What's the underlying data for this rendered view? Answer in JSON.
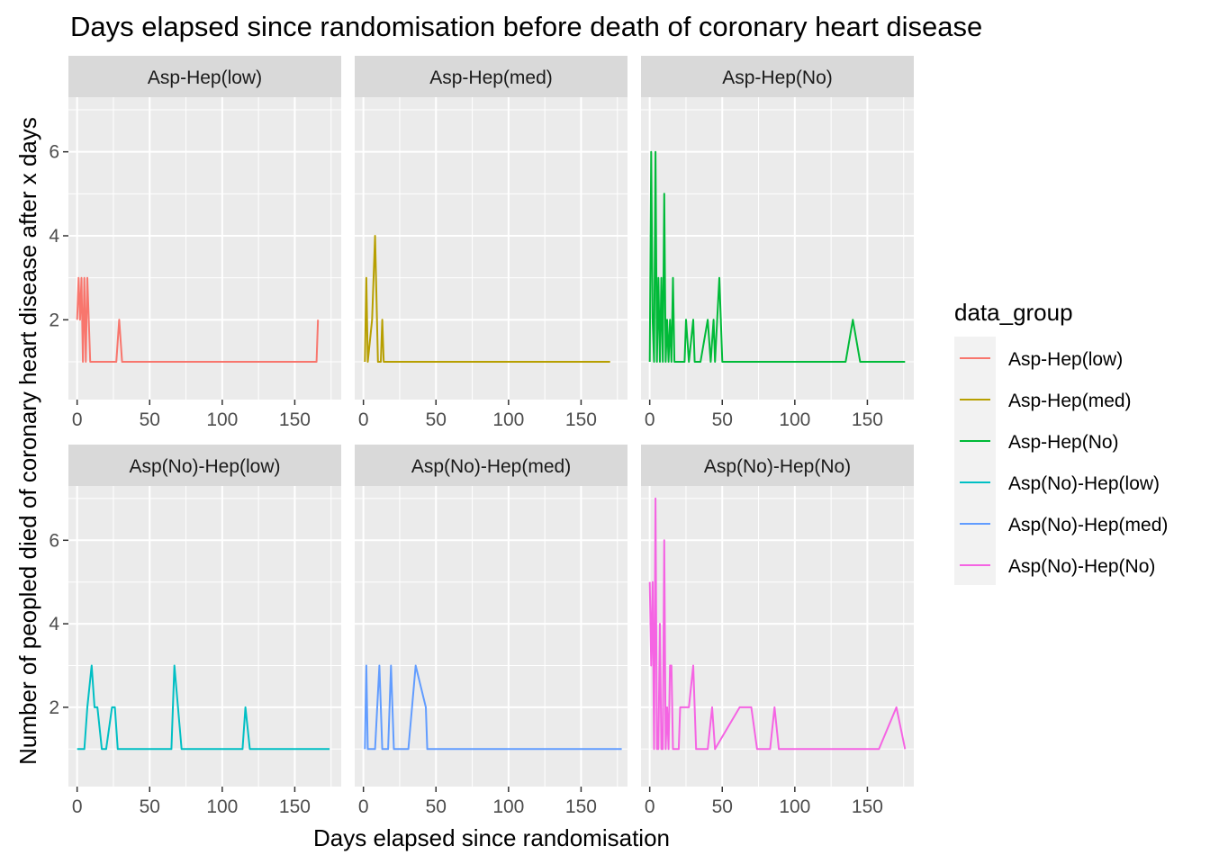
{
  "chart_data": {
    "type": "line",
    "title": "Days elapsed since randomisation before death of coronary heart disease",
    "xlabel": "Days elapsed since randomisation",
    "ylabel": "Number of peopled died of coronary heart disease after x days",
    "xlim": [
      -6,
      182
    ],
    "ylim": [
      0.1,
      7.3
    ],
    "x_ticks": [
      0,
      50,
      100,
      150
    ],
    "y_ticks": [
      2,
      4,
      6
    ],
    "grid": true,
    "legend": {
      "title": "data_group",
      "position": "right"
    },
    "series": [
      {
        "name": "Asp-Hep(low)",
        "color": "#F8766D",
        "x": [
          0,
          1,
          2,
          3,
          4,
          5,
          6,
          7,
          8,
          9,
          27,
          29,
          31,
          165,
          166
        ],
        "y": [
          2,
          3,
          2,
          3,
          1,
          3,
          1,
          3,
          2,
          1,
          1,
          2,
          1,
          1,
          2
        ]
      },
      {
        "name": "Asp-Hep(med)",
        "color": "#B79F00",
        "x": [
          1,
          2,
          3,
          6,
          8,
          10,
          12,
          13,
          14,
          170
        ],
        "y": [
          1,
          3,
          1,
          2,
          4,
          1,
          1,
          2,
          1,
          1
        ]
      },
      {
        "name": "Asp-Hep(No)",
        "color": "#00BA38",
        "x": [
          0,
          1,
          2,
          3,
          4,
          5,
          6,
          7,
          8,
          9,
          10,
          11,
          12,
          13,
          14,
          15,
          16,
          17,
          18,
          20,
          24,
          25,
          27,
          30,
          31,
          35,
          40,
          42,
          44,
          45,
          48,
          50,
          52,
          135,
          140,
          145,
          176
        ],
        "y": [
          1,
          6,
          2,
          1,
          6,
          1,
          3,
          1,
          3,
          1,
          5,
          1,
          2,
          1,
          2,
          1,
          3,
          1,
          1,
          1,
          1,
          2,
          1,
          2,
          1,
          1,
          2,
          1,
          2,
          1,
          3,
          1,
          1,
          1,
          2,
          1,
          1
        ]
      },
      {
        "name": "Asp(No)-Hep(low)",
        "color": "#00BFC4",
        "x": [
          0,
          5,
          7,
          10,
          12,
          14,
          17,
          20,
          24,
          26,
          28,
          30,
          65,
          67,
          72,
          114,
          116,
          119,
          174
        ],
        "y": [
          1,
          1,
          2,
          3,
          2,
          2,
          1,
          1,
          2,
          2,
          1,
          1,
          1,
          3,
          1,
          1,
          2,
          1,
          1
        ]
      },
      {
        "name": "Asp(No)-Hep(med)",
        "color": "#619CFF",
        "x": [
          1,
          2,
          3,
          8,
          11,
          13,
          17,
          19,
          21,
          31,
          36,
          43,
          44,
          50,
          178
        ],
        "y": [
          1,
          3,
          1,
          1,
          3,
          1,
          1,
          3,
          1,
          1,
          3,
          2,
          1,
          1,
          1
        ]
      },
      {
        "name": "Asp(No)-Hep(No)",
        "color": "#F564E3",
        "x": [
          0,
          1,
          2,
          3,
          4,
          5,
          6,
          7,
          8,
          9,
          10,
          11,
          12,
          13,
          14,
          15,
          16,
          17,
          18,
          19,
          20,
          21,
          22,
          24,
          26,
          27,
          30,
          32,
          40,
          43,
          45,
          62,
          70,
          74,
          83,
          86,
          89,
          158,
          170,
          176
        ],
        "y": [
          5,
          3,
          5,
          1,
          7,
          1,
          1,
          4,
          1,
          1,
          6,
          1,
          2,
          1,
          3,
          3,
          1,
          1,
          1,
          1,
          1,
          2,
          2,
          2,
          2,
          2,
          3,
          1,
          1,
          2,
          1,
          2,
          2,
          1,
          1,
          2,
          1,
          1,
          2,
          1
        ]
      }
    ]
  }
}
